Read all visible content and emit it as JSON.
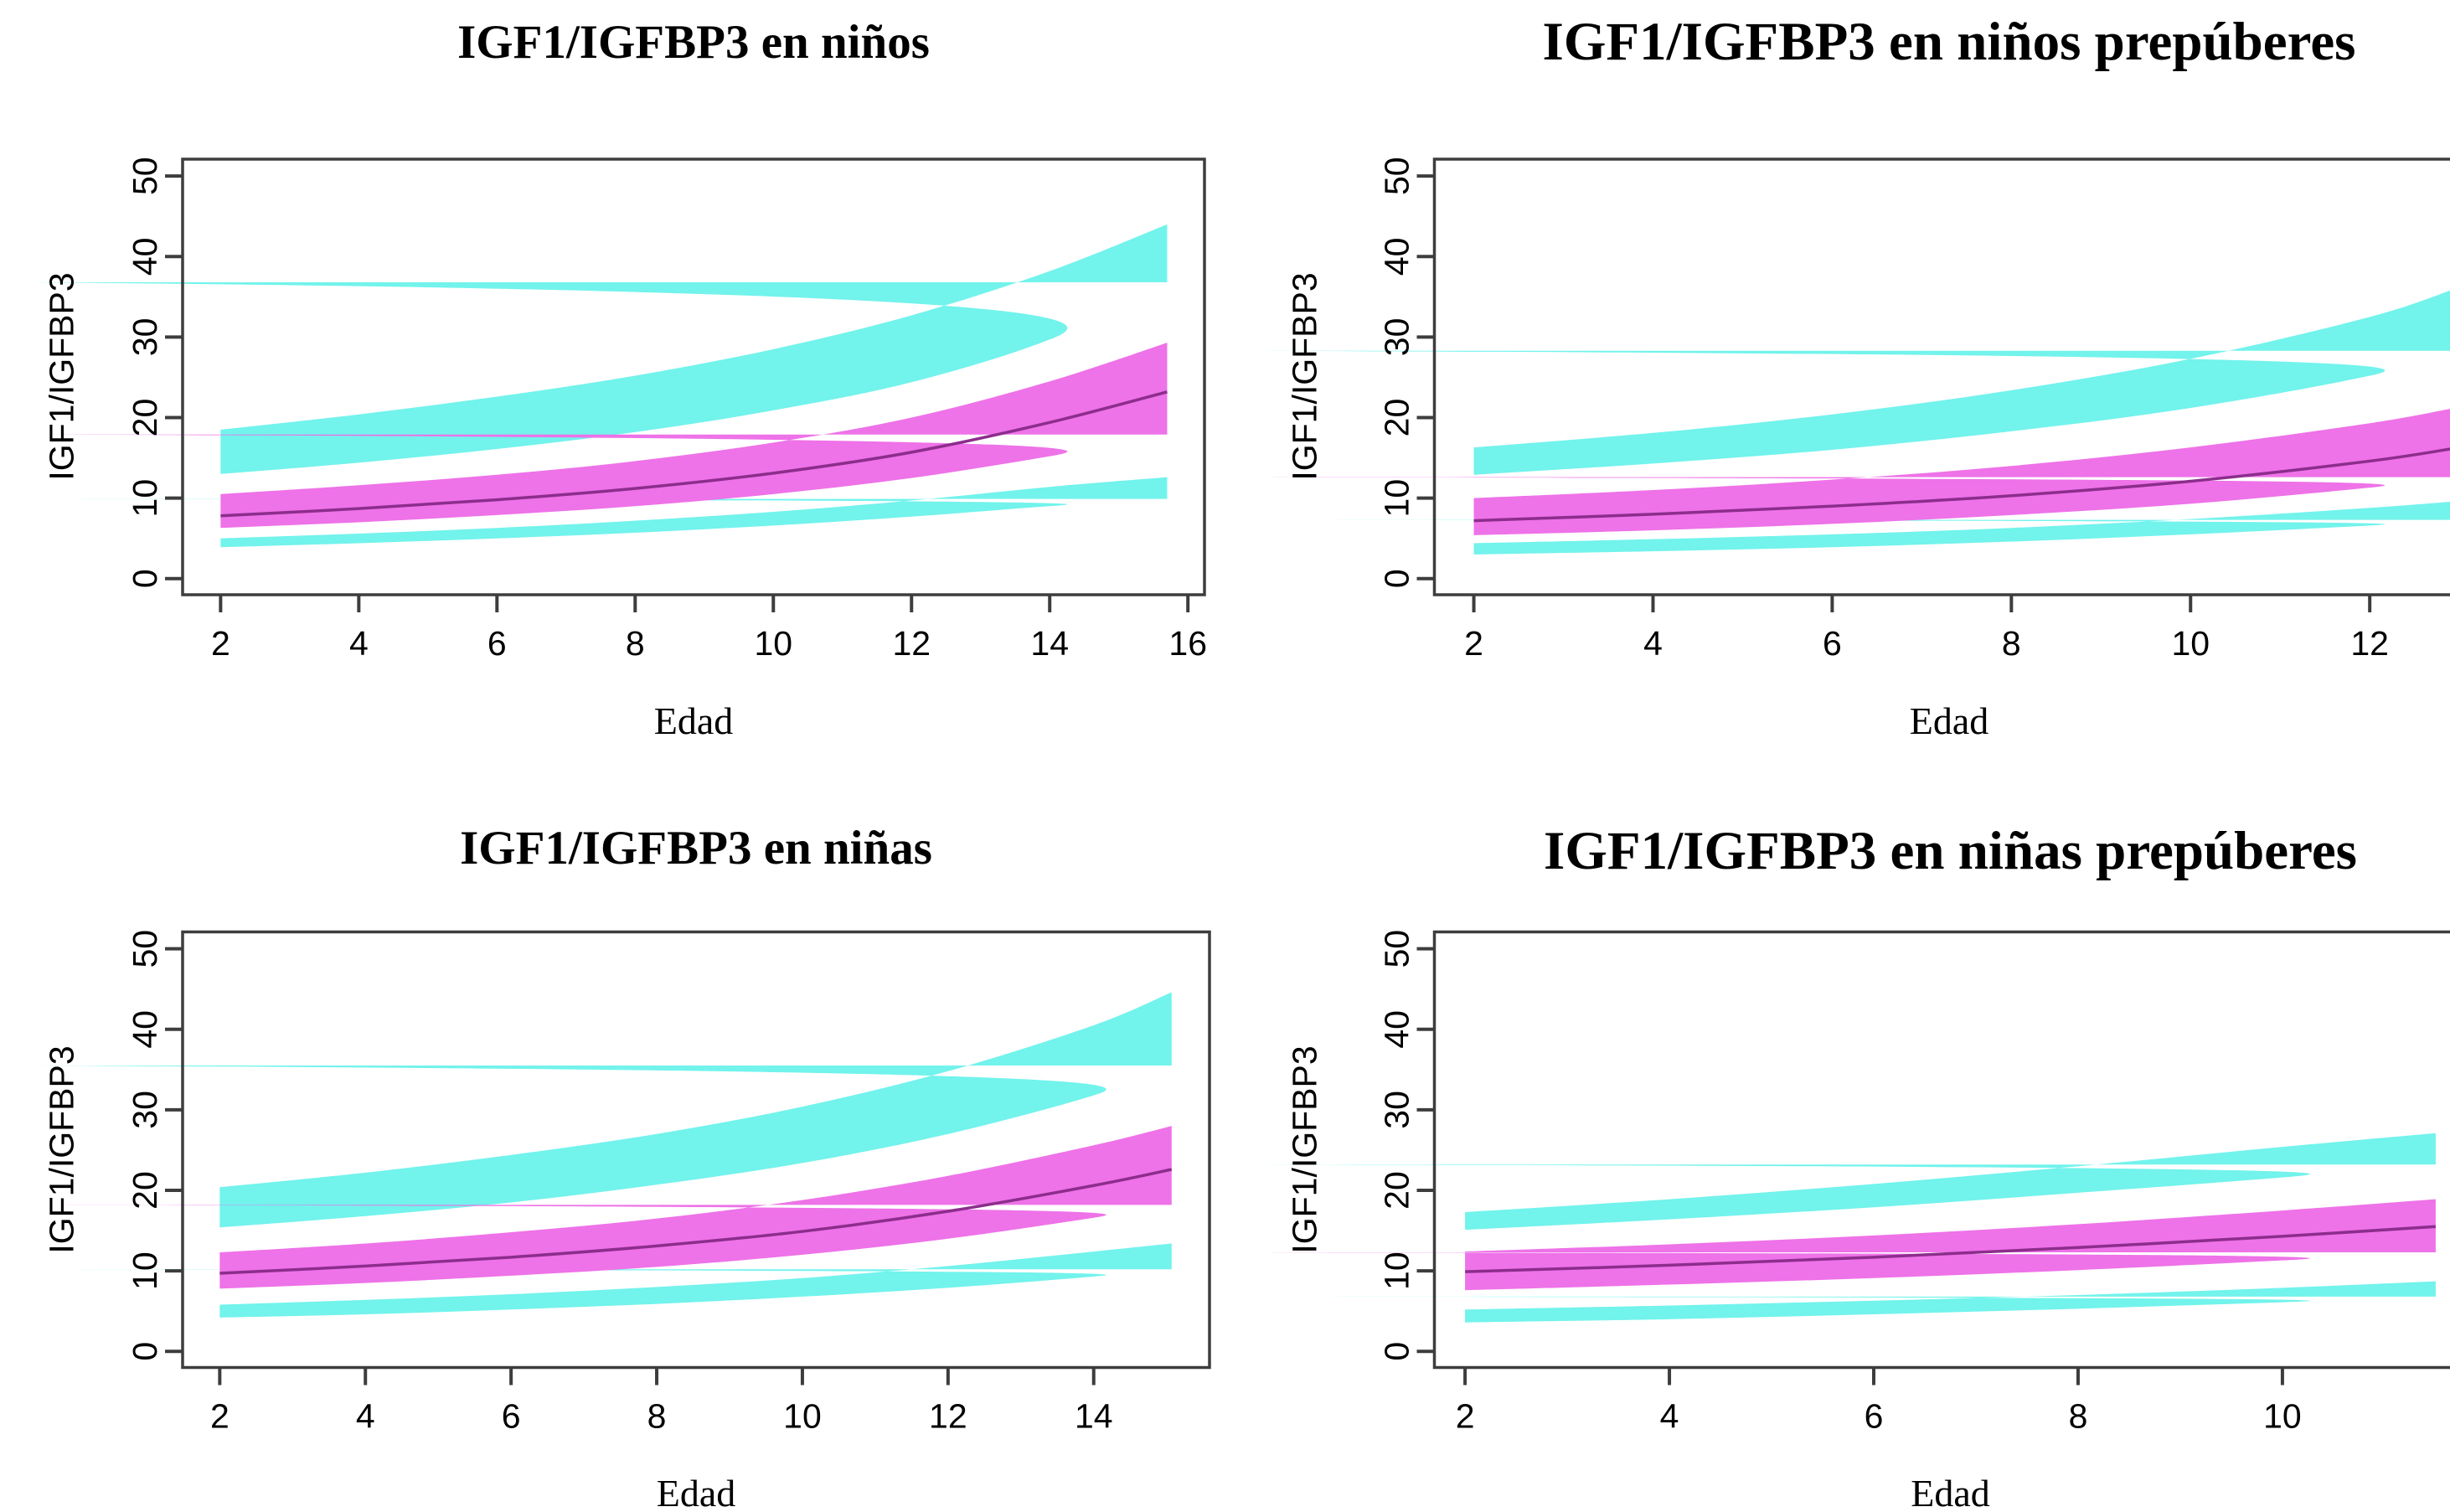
{
  "figure": {
    "background": "#ffffff",
    "description_visible_text_only": "Four percentile band charts of IGF1/IGFBP3 ratio versus age"
  },
  "colors": {
    "outer_band": "#72f3ec",
    "inner_band": "#ee72e8",
    "center_line": "#8c2d8c",
    "axis": "#3d3d3d",
    "text": "#000000"
  },
  "chart_data": [
    {
      "type": "area",
      "title": "IGF1/IGFBP3 en niños",
      "xlabel": "Edad",
      "ylabel": "IGF1/IGFBP3",
      "x_ticks": [
        2,
        4,
        6,
        8,
        10,
        12,
        14,
        16
      ],
      "y_ticks": [
        0,
        10,
        20,
        30,
        40,
        50
      ],
      "xlim": [
        1.45,
        16.24
      ],
      "ylim": [
        -2,
        52.1
      ],
      "grid": false,
      "legend": "none",
      "x": [
        2,
        4,
        6,
        8,
        10,
        12,
        14,
        15.7
      ],
      "upper_band": {
        "color_key": "outer_band",
        "top": [
          18.5,
          20.4,
          22.6,
          25.2,
          28.5,
          32.7,
          38.2,
          44.0
        ],
        "bottom": [
          13.0,
          14.4,
          16.1,
          18.2,
          20.9,
          24.4,
          29.7,
          36.8
        ]
      },
      "middle_band": {
        "color_key": "inner_band",
        "top": [
          10.5,
          11.6,
          12.9,
          14.6,
          16.9,
          20.0,
          24.5,
          29.3
        ],
        "center": [
          7.8,
          8.7,
          9.8,
          11.2,
          13.1,
          15.7,
          19.4,
          23.2
        ],
        "bottom": [
          6.3,
          7.0,
          7.9,
          9.0,
          10.5,
          12.5,
          15.2,
          17.9
        ]
      },
      "lower_band": {
        "color_key": "outer_band",
        "top": [
          5.0,
          5.6,
          6.3,
          7.2,
          8.3,
          9.7,
          11.4,
          12.6
        ],
        "bottom": [
          3.9,
          4.4,
          5.0,
          5.7,
          6.6,
          7.7,
          9.0,
          9.9
        ]
      }
    },
    {
      "type": "area",
      "title": "IGF1/IGFBP3 en niños prepúberes",
      "xlabel": "Edad",
      "ylabel": "IGF1/IGFBP3",
      "x_ticks": [
        2,
        4,
        6,
        8,
        10,
        12
      ],
      "y_ticks": [
        0,
        10,
        20,
        30,
        40,
        50
      ],
      "xlim": [
        1.56,
        13.05
      ],
      "ylim": [
        -2,
        52.1
      ],
      "grid": false,
      "legend": "none",
      "x": [
        2,
        4,
        6,
        8,
        10,
        12,
        12.95
      ],
      "upper_band": {
        "color_key": "outer_band",
        "top": [
          16.3,
          18.1,
          20.4,
          23.4,
          27.3,
          32.5,
          36.0
        ],
        "bottom": [
          12.9,
          14.3,
          16.0,
          18.3,
          21.2,
          25.2,
          28.3
        ]
      },
      "middle_band": {
        "color_key": "inner_band",
        "top": [
          10.0,
          11.0,
          12.3,
          14.0,
          16.3,
          19.3,
          21.2
        ],
        "center": [
          7.2,
          8.0,
          9.0,
          10.3,
          12.1,
          14.6,
          16.2
        ],
        "bottom": [
          5.4,
          6.0,
          6.8,
          7.9,
          9.3,
          11.3,
          12.6
        ]
      },
      "lower_band": {
        "color_key": "outer_band",
        "top": [
          4.4,
          4.9,
          5.5,
          6.3,
          7.4,
          8.8,
          9.6
        ],
        "bottom": [
          3.0,
          3.4,
          3.9,
          4.6,
          5.5,
          6.6,
          7.3
        ]
      }
    },
    {
      "type": "area",
      "title": "IGF1/IGFBP3 en niñas",
      "xlabel": "Edad",
      "ylabel": "IGF1/IGFBP3",
      "x_ticks": [
        2,
        4,
        6,
        8,
        10,
        12,
        14
      ],
      "y_ticks": [
        0,
        10,
        20,
        30,
        40,
        50
      ],
      "xlim": [
        1.49,
        15.59
      ],
      "ylim": [
        -2,
        52.1
      ],
      "grid": false,
      "legend": "none",
      "x": [
        2,
        4,
        6,
        8,
        10,
        12,
        14,
        15.07
      ],
      "upper_band": {
        "color_key": "outer_band",
        "top": [
          20.4,
          22.2,
          24.4,
          27.0,
          30.4,
          34.8,
          40.5,
          44.6
        ],
        "bottom": [
          15.4,
          16.8,
          18.5,
          20.7,
          23.4,
          27.0,
          31.8,
          35.5
        ]
      },
      "middle_band": {
        "color_key": "inner_band",
        "top": [
          12.3,
          13.4,
          14.8,
          16.5,
          18.8,
          21.8,
          25.6,
          28.0
        ],
        "center": [
          9.7,
          10.6,
          11.7,
          13.1,
          14.9,
          17.4,
          20.6,
          22.6
        ],
        "bottom": [
          7.8,
          8.5,
          9.4,
          10.5,
          12.0,
          14.0,
          16.6,
          18.2
        ]
      },
      "lower_band": {
        "color_key": "outer_band",
        "top": [
          5.8,
          6.4,
          7.1,
          8.0,
          9.1,
          10.6,
          12.4,
          13.4
        ],
        "bottom": [
          4.2,
          4.6,
          5.2,
          5.9,
          6.8,
          7.9,
          9.3,
          10.2
        ]
      }
    },
    {
      "type": "area",
      "title": "IGF1/IGFBP3 en niñas prepúberes",
      "xlabel": "Edad",
      "ylabel": "IGF1/IGFBP3",
      "x_ticks": [
        2,
        4,
        6,
        8,
        10
      ],
      "y_ticks": [
        0,
        10,
        20,
        30,
        40,
        50
      ],
      "xlim": [
        1.7,
        11.8
      ],
      "ylim": [
        -2,
        52.1
      ],
      "grid": false,
      "legend": "none",
      "x": [
        2,
        4,
        6,
        8,
        10,
        11.5
      ],
      "upper_band": {
        "color_key": "outer_band",
        "top": [
          17.3,
          18.9,
          20.8,
          23.0,
          25.4,
          27.1
        ],
        "bottom": [
          15.1,
          16.4,
          17.9,
          19.7,
          21.6,
          23.2
        ]
      },
      "middle_band": {
        "color_key": "inner_band",
        "top": [
          12.4,
          13.3,
          14.4,
          15.8,
          17.5,
          18.9
        ],
        "center": [
          9.9,
          10.7,
          11.7,
          12.9,
          14.3,
          15.5
        ],
        "bottom": [
          7.6,
          8.3,
          9.1,
          10.1,
          11.3,
          12.3
        ]
      },
      "lower_band": {
        "color_key": "outer_band",
        "top": [
          5.2,
          5.7,
          6.3,
          7.0,
          7.9,
          8.7
        ],
        "bottom": [
          3.6,
          4.0,
          4.6,
          5.3,
          6.1,
          6.8
        ]
      }
    }
  ]
}
